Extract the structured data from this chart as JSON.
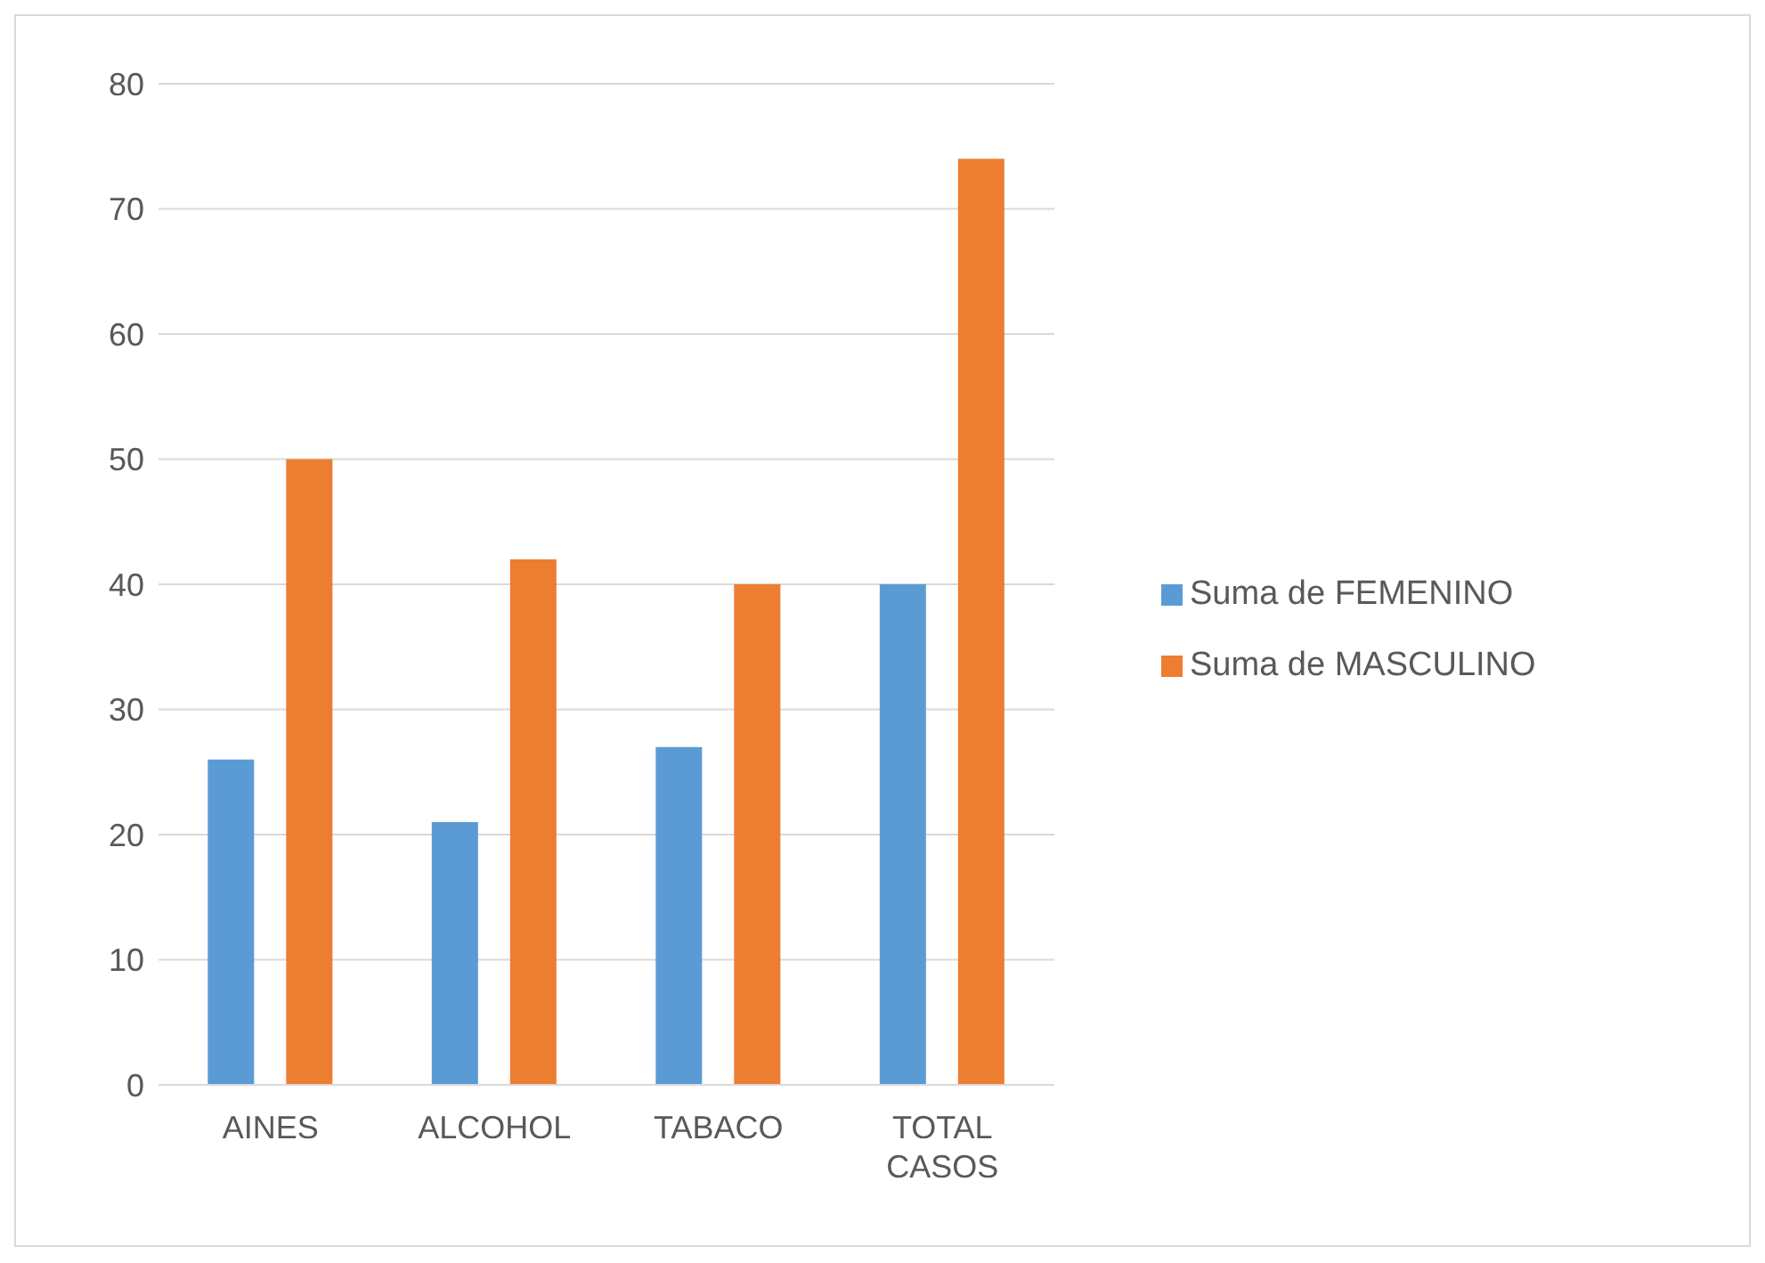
{
  "chart_data": {
    "type": "bar",
    "categories": [
      "AINES",
      "ALCOHOL",
      "TABACO",
      "TOTAL CASOS"
    ],
    "series": [
      {
        "name": "Suma de FEMENINO",
        "color": "#5b9bd5",
        "values": [
          26,
          21,
          27,
          40
        ]
      },
      {
        "name": "Suma de MASCULINO",
        "color": "#ed7d31",
        "values": [
          50,
          42,
          40,
          74
        ]
      }
    ],
    "ylim": [
      0,
      80
    ],
    "yticks": [
      0,
      10,
      20,
      30,
      40,
      50,
      60,
      70,
      80
    ],
    "grid": "y",
    "legend": "right"
  }
}
